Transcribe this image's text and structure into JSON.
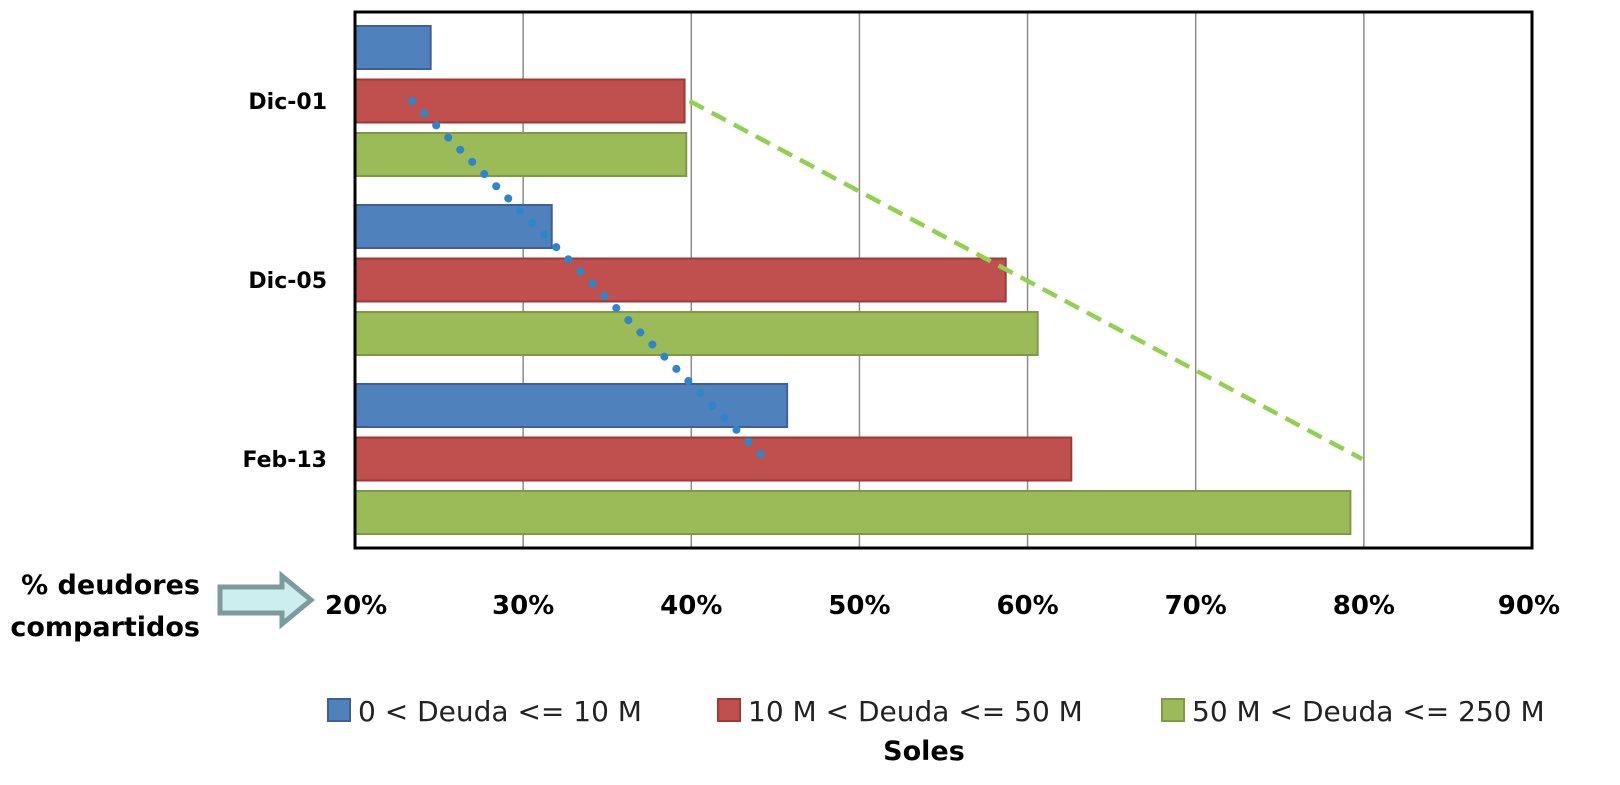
{
  "chart_data": {
    "type": "bar",
    "orientation": "horizontal",
    "categories": [
      "Dic-01",
      "Dic-05",
      "Feb-13"
    ],
    "series": [
      {
        "name": "0 < Deuda <= 10 M",
        "color": "#4F81BD",
        "border": "#3F5F99",
        "values": [
          24.5,
          31.7,
          45.7
        ]
      },
      {
        "name": "10 M < Deuda <= 50 M",
        "color": "#C0504D",
        "border": "#9A3B38",
        "values": [
          39.6,
          58.7,
          62.6
        ]
      },
      {
        "name": "50 M < Deuda <= 250 M",
        "color": "#9BBB59",
        "border": "#7E9A45",
        "values": [
          39.7,
          60.6,
          79.2
        ]
      }
    ],
    "xlim": [
      20,
      90
    ],
    "xticks": [
      "20%",
      "30%",
      "40%",
      "50%",
      "60%",
      "70%",
      "80%",
      "90%"
    ],
    "side_label": [
      "% deudores",
      "compartidos"
    ],
    "xlabel": "Soles",
    "legend_position": "bottom",
    "grid": "vertical",
    "trendlines": [
      {
        "series": "0 < Deuda <= 10 M",
        "style": "dotted",
        "color": "#2E86C8",
        "from": [
          23.4,
          "Dic-01"
        ],
        "to": [
          44.4,
          "Feb-13"
        ]
      },
      {
        "series": "50 M < Deuda <= 250 M",
        "style": "dashed",
        "color": "#92D050",
        "from": [
          39.9,
          "Dic-01"
        ],
        "to": [
          79.9,
          "Feb-13"
        ]
      }
    ]
  }
}
